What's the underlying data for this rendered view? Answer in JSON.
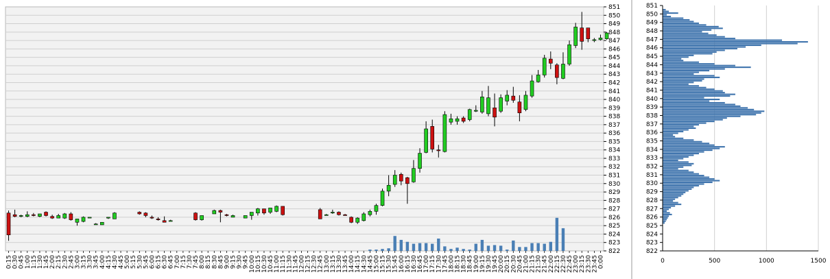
{
  "colors": {
    "plot_bg": "#f2f2f2",
    "grid": "#cfcfcf",
    "up_candle": "#22cc22",
    "down_candle": "#cc1111",
    "wick": "#000000",
    "volume_bar": "#4a7fb5",
    "profile_bar": "#3f74ad"
  },
  "chart_data": [
    {
      "type": "candlestick",
      "yticks": [
        822,
        823,
        824,
        825,
        826,
        827,
        828,
        829,
        830,
        831,
        832,
        833,
        834,
        835,
        836,
        837,
        838,
        839,
        840,
        841,
        842,
        843,
        844,
        845,
        846,
        847,
        848,
        849,
        850,
        851
      ],
      "ylim": [
        822,
        851
      ],
      "grid": true,
      "x": [
        "0:15",
        "0:30",
        "0:45",
        "1:00",
        "1:15",
        "1:30",
        "1:45",
        "2:00",
        "2:15",
        "2:30",
        "2:45",
        "3:00",
        "3:15",
        "3:30",
        "3:45",
        "4:00",
        "4:15",
        "4:30",
        "4:45",
        "5:00",
        "5:15",
        "5:30",
        "5:45",
        "6:00",
        "6:15",
        "6:30",
        "6:45",
        "7:00",
        "7:15",
        "7:30",
        "7:45",
        "8:00",
        "8:15",
        "8:30",
        "8:45",
        "9:00",
        "9:15",
        "9:30",
        "9:45",
        "10:00",
        "10:15",
        "10:30",
        "10:45",
        "11:00",
        "11:15",
        "11:30",
        "11:45",
        "12:00",
        "12:15",
        "12:30",
        "12:45",
        "13:00",
        "13:15",
        "13:30",
        "13:45",
        "14:00",
        "14:15",
        "14:30",
        "14:45",
        "15:00",
        "15:15",
        "15:30",
        "15:45",
        "16:00",
        "16:15",
        "16:30",
        "16:45",
        "17:00",
        "17:15",
        "17:30",
        "17:45",
        "18:00",
        "18:15",
        "18:30",
        "18:45",
        "19:00",
        "19:15",
        "19:30",
        "19:45",
        "20:00",
        "20:15",
        "20:30",
        "20:45",
        "21:00",
        "21:15",
        "21:30",
        "21:45",
        "22:00",
        "22:15",
        "22:30",
        "22:45",
        "23:00",
        "23:15",
        "23:30",
        "23:45",
        "0:00"
      ],
      "ohlc": [
        [
          826.5,
          826.8,
          823.2,
          823.9
        ],
        [
          826.3,
          826.9,
          826.0,
          826.1
        ],
        [
          826.2,
          826.3,
          826.0,
          826.2
        ],
        [
          826.1,
          826.7,
          826.0,
          826.3
        ],
        [
          826.3,
          826.5,
          826.1,
          826.2
        ],
        [
          826.1,
          826.4,
          826.0,
          826.4
        ],
        [
          826.6,
          826.7,
          826.1,
          826.2
        ],
        [
          826.1,
          826.3,
          825.8,
          825.9
        ],
        [
          825.9,
          826.4,
          825.9,
          826.2
        ],
        [
          825.9,
          826.5,
          825.8,
          826.4
        ],
        [
          826.4,
          826.6,
          825.6,
          825.7
        ],
        [
          825.4,
          825.8,
          825.0,
          825.8
        ],
        [
          825.5,
          826.1,
          825.4,
          826.0
        ],
        [
          826.0,
          826.0,
          826.0,
          826.0
        ],
        [
          825.2,
          825.3,
          825.2,
          825.2
        ],
        [
          825.1,
          825.4,
          825.1,
          825.4
        ],
        [
          825.9,
          826.0,
          825.8,
          826.0
        ],
        [
          825.8,
          826.6,
          825.8,
          826.5
        ],
        null,
        null,
        null,
        [
          826.6,
          826.7,
          826.3,
          826.4
        ],
        [
          826.5,
          826.6,
          826.0,
          826.2
        ],
        [
          826.0,
          826.2,
          825.8,
          825.9
        ],
        [
          825.8,
          826.0,
          825.6,
          825.7
        ],
        [
          825.6,
          826.1,
          825.4,
          825.4
        ],
        [
          825.6,
          825.7,
          825.5,
          825.6
        ],
        null,
        null,
        null,
        [
          826.5,
          826.6,
          825.6,
          825.7
        ],
        [
          825.7,
          826.2,
          825.6,
          826.2
        ],
        null,
        [
          826.4,
          826.9,
          826.4,
          826.8
        ],
        [
          826.8,
          826.9,
          825.4,
          826.6
        ],
        [
          826.3,
          826.4,
          826.1,
          826.2
        ],
        [
          826.0,
          826.3,
          826.0,
          826.2
        ],
        null,
        [
          825.9,
          826.2,
          825.9,
          826.2
        ],
        [
          826.2,
          826.6,
          825.7,
          826.6
        ],
        [
          826.5,
          827.1,
          826.2,
          827.0
        ],
        [
          827.0,
          827.0,
          826.3,
          826.5
        ],
        [
          826.6,
          827.1,
          826.4,
          827.1
        ],
        [
          826.7,
          827.4,
          826.6,
          827.3
        ],
        [
          827.3,
          827.3,
          826.2,
          826.3
        ],
        null,
        null,
        null,
        null,
        null,
        [
          826.9,
          827.1,
          825.8,
          825.8
        ],
        [
          826.3,
          826.4,
          826.2,
          826.3
        ],
        [
          826.5,
          826.9,
          826.4,
          826.6
        ],
        [
          826.6,
          826.7,
          826.2,
          826.3
        ],
        [
          826.3,
          826.4,
          826.2,
          826.2
        ],
        [
          826.0,
          826.1,
          825.3,
          825.4
        ],
        [
          825.4,
          826.0,
          825.2,
          825.9
        ],
        [
          825.6,
          826.6,
          825.5,
          826.4
        ],
        [
          826.3,
          826.9,
          826.1,
          826.7
        ],
        [
          826.7,
          827.6,
          826.3,
          827.4
        ],
        [
          827.4,
          829.4,
          827.3,
          829.1
        ],
        [
          829.1,
          831.0,
          828.5,
          829.8
        ],
        [
          829.9,
          831.6,
          829.6,
          831.0
        ],
        [
          831.1,
          831.3,
          829.8,
          830.3
        ],
        [
          830.7,
          830.8,
          827.6,
          830.0
        ],
        [
          830.2,
          832.8,
          830.1,
          831.8
        ],
        [
          831.8,
          834.2,
          831.3,
          833.6
        ],
        [
          833.7,
          837.4,
          833.6,
          836.5
        ],
        [
          836.8,
          837.6,
          833.7,
          834.1
        ],
        [
          834.0,
          834.6,
          833.1,
          833.9
        ],
        [
          833.8,
          838.6,
          833.7,
          838.2
        ],
        [
          837.3,
          838.3,
          837.0,
          837.7
        ],
        [
          837.4,
          838.0,
          837.0,
          837.7
        ],
        [
          837.8,
          838.0,
          837.2,
          837.4
        ],
        [
          837.6,
          838.9,
          837.4,
          838.8
        ],
        [
          838.6,
          839.3,
          838.5,
          838.7
        ],
        [
          838.5,
          841.0,
          838.3,
          840.3
        ],
        [
          838.3,
          841.6,
          838.0,
          840.2
        ],
        [
          839.0,
          840.7,
          836.8,
          837.9
        ],
        [
          838.6,
          840.6,
          838.4,
          840.2
        ],
        [
          839.8,
          841.1,
          839.3,
          840.5
        ],
        [
          840.4,
          841.5,
          839.6,
          839.9
        ],
        [
          839.7,
          840.5,
          837.4,
          838.4
        ],
        [
          838.8,
          841.0,
          838.6,
          840.5
        ],
        [
          840.4,
          842.9,
          840.2,
          842.2
        ],
        [
          842.1,
          843.5,
          842.0,
          842.9
        ],
        [
          842.9,
          845.3,
          842.6,
          844.9
        ],
        [
          844.8,
          845.7,
          843.6,
          844.3
        ],
        [
          844.1,
          844.3,
          841.8,
          842.6
        ],
        [
          842.5,
          845.6,
          842.4,
          844.2
        ],
        [
          844.2,
          847.0,
          844.0,
          846.5
        ],
        [
          846.4,
          849.1,
          846.1,
          848.6
        ],
        [
          848.5,
          850.4,
          845.9,
          846.9
        ],
        [
          848.5,
          848.5,
          846.8,
          847.2
        ],
        [
          847.0,
          847.3,
          846.8,
          847.1
        ],
        [
          847.1,
          847.7,
          847.0,
          847.3
        ],
        [
          847.2,
          848.0,
          847.1,
          847.9
        ],
        null,
        null,
        null,
        null,
        null
      ],
      "volume": [
        0,
        0,
        0,
        0,
        0,
        0,
        0,
        0,
        0,
        0,
        0,
        0,
        0,
        0,
        0,
        0,
        0,
        0,
        0,
        0,
        0,
        0,
        0,
        0,
        0,
        0,
        0,
        0,
        0,
        0,
        0,
        0,
        0,
        0,
        0,
        0,
        0,
        0,
        0,
        0,
        0,
        0,
        0,
        0,
        0,
        0,
        0,
        0,
        0,
        0,
        0,
        0,
        0,
        0,
        0,
        0,
        0,
        0,
        2,
        2,
        3,
        4,
        23,
        17,
        14,
        11,
        12,
        12,
        11,
        19,
        7,
        3,
        5,
        3,
        2,
        11,
        17,
        8,
        9,
        8,
        2,
        16,
        6,
        6,
        12,
        12,
        11,
        14,
        51,
        35,
        0,
        0,
        0,
        0,
        0,
        0
      ]
    },
    {
      "type": "bar",
      "orientation": "horizontal",
      "yticks": [
        822,
        823,
        824,
        825,
        826,
        827,
        828,
        829,
        830,
        831,
        832,
        833,
        834,
        835,
        836,
        837,
        838,
        839,
        840,
        841,
        842,
        843,
        844,
        845,
        846,
        847,
        848,
        849,
        850,
        851
      ],
      "xticks": [
        0,
        500,
        1000,
        1500
      ],
      "xlim": [
        0,
        1500
      ],
      "ylim": [
        822,
        851
      ],
      "grid": true,
      "price_levels": [
        850.5,
        850.3,
        850.1,
        849.9,
        849.7,
        849.5,
        849.3,
        849.1,
        848.9,
        848.7,
        848.5,
        848.3,
        848.1,
        847.9,
        847.7,
        847.5,
        847.3,
        847.1,
        846.9,
        846.7,
        846.5,
        846.3,
        846.1,
        845.9,
        845.7,
        845.5,
        845.3,
        845.1,
        844.9,
        844.7,
        844.5,
        844.3,
        844.1,
        843.9,
        843.7,
        843.5,
        843.3,
        843.1,
        842.9,
        842.7,
        842.5,
        842.3,
        842.1,
        841.9,
        841.7,
        841.5,
        841.3,
        841.1,
        840.9,
        840.7,
        840.5,
        840.3,
        840.1,
        839.9,
        839.7,
        839.5,
        839.3,
        839.1,
        838.9,
        838.7,
        838.5,
        838.3,
        838.1,
        837.9,
        837.7,
        837.5,
        837.3,
        837.1,
        836.9,
        836.7,
        836.5,
        836.3,
        836.1,
        835.9,
        835.7,
        835.5,
        835.3,
        835.1,
        834.9,
        834.7,
        834.5,
        834.3,
        834.1,
        833.9,
        833.7,
        833.5,
        833.3,
        833.1,
        832.9,
        832.7,
        832.5,
        832.3,
        832.1,
        831.9,
        831.7,
        831.5,
        831.3,
        831.1,
        830.9,
        830.7,
        830.5,
        830.3,
        830.1,
        829.9,
        829.7,
        829.5,
        829.3,
        829.1,
        828.9,
        828.7,
        828.5,
        828.3,
        828.1,
        827.9,
        827.7,
        827.5,
        827.3,
        827.1,
        826.9,
        826.7,
        826.5,
        826.3,
        826.1,
        825.9,
        825.7,
        825.5,
        825.3,
        825.1,
        824.9
      ],
      "values": [
        30,
        60,
        150,
        40,
        80,
        200,
        260,
        300,
        350,
        420,
        540,
        580,
        470,
        380,
        440,
        520,
        600,
        700,
        1150,
        1400,
        1300,
        950,
        800,
        720,
        600,
        520,
        480,
        300,
        250,
        180,
        200,
        350,
        500,
        700,
        850,
        600,
        450,
        350,
        300,
        500,
        550,
        400,
        380,
        300,
        250,
        350,
        420,
        500,
        580,
        600,
        700,
        650,
        400,
        550,
        450,
        600,
        700,
        750,
        820,
        880,
        980,
        950,
        900,
        750,
        620,
        580,
        500,
        420,
        350,
        300,
        320,
        250,
        200,
        150,
        100,
        120,
        200,
        300,
        380,
        450,
        500,
        600,
        550,
        480,
        400,
        350,
        300,
        250,
        200,
        150,
        250,
        300,
        280,
        200,
        150,
        250,
        300,
        350,
        400,
        450,
        500,
        550,
        480,
        400,
        350,
        300,
        280,
        250,
        220,
        200,
        180,
        150,
        120,
        100,
        150,
        180,
        120,
        80,
        60,
        40,
        70,
        90,
        60,
        50,
        40,
        30,
        20,
        0
      ]
    }
  ]
}
